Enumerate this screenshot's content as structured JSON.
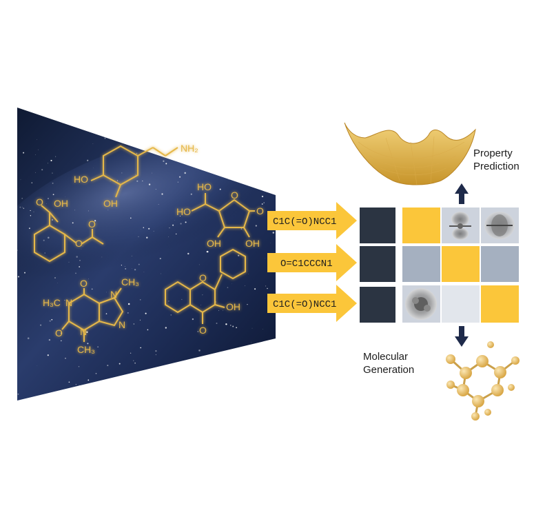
{
  "panel": {
    "molecules": {
      "dopamine": {
        "labels": [
          "HO",
          "OH",
          "NH₂"
        ]
      },
      "aspirin": {
        "labels": [
          "OH",
          "O",
          "O",
          "O"
        ]
      },
      "ascorbic_acid": {
        "labels": [
          "HO",
          "OH",
          "O",
          "O",
          "HO",
          "OH"
        ]
      },
      "caffeine": {
        "labels": [
          "H₃C",
          "CH₃",
          "CH₃",
          "O",
          "O",
          "N",
          "N",
          "N",
          "N"
        ]
      },
      "flavonol": {
        "labels": [
          "O",
          "OH",
          "O"
        ]
      }
    }
  },
  "arrows": [
    {
      "label": "C1C(=O)NCC1"
    },
    {
      "label": "O=C1CCCN1"
    },
    {
      "label": "C1C(=O)NCC1"
    }
  ],
  "grid": {
    "colors": {
      "dark": "#2b3442",
      "yellow": "#fbc63a",
      "gray": "#a5b0c0",
      "light": "#cdd3dd",
      "white": "#ffffff"
    },
    "rows": [
      [
        "dark",
        "white",
        "yellow",
        "light-orbital",
        "light-orbital"
      ],
      [
        "dark",
        "white",
        "gray",
        "yellow",
        "gray"
      ],
      [
        "dark",
        "white",
        "light-orbital",
        "light",
        "yellow"
      ]
    ]
  },
  "captions": {
    "property_prediction": [
      "Property",
      "Prediction"
    ],
    "molecular_generation": [
      "Molecular",
      "Generation"
    ]
  },
  "colors": {
    "arrow_fill": "#fbc63a",
    "navy": "#1e2a4a",
    "glow": "#e6b84a"
  }
}
